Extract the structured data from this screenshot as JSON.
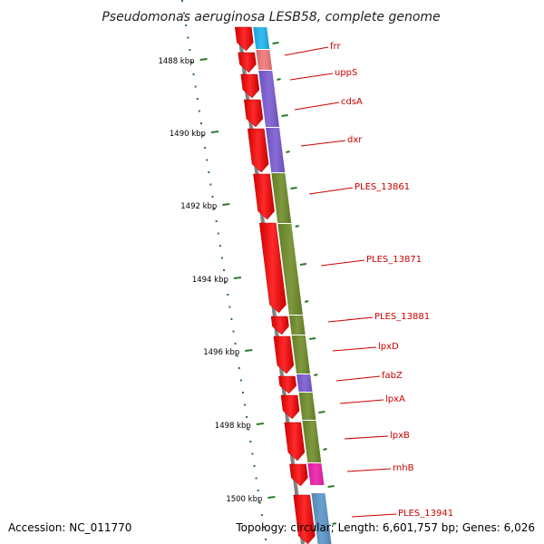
{
  "title": "Pseudomonas aeruginosa LESB58, complete genome",
  "footer": {
    "accession": "Accession: NC_011770",
    "stats": "Topology: circular; Length: 6,601,757 bp; Genes: 6,026"
  },
  "kbp_labels": [
    "1488 kbp",
    "1490 kbp",
    "1492 kbp",
    "1494 kbp",
    "1496 kbp",
    "1498 kbp",
    "1500 kbp"
  ],
  "genes": [
    {
      "name": "frr",
      "color": "#1eb4f0"
    },
    {
      "name": "uppS",
      "color": "#f07878"
    },
    {
      "name": "cdsA",
      "color": "#7a5ad2"
    },
    {
      "name": "dxr",
      "color": "#7a5ad2"
    },
    {
      "name": "PLES_13861",
      "color": "#6e8c28"
    },
    {
      "name": "PLES_13871",
      "color": "#6e8c28"
    },
    {
      "name": "PLES_13881",
      "color": "#6e8c28"
    },
    {
      "name": "lpxD",
      "color": "#6e8c28"
    },
    {
      "name": "fabZ",
      "color": "#7a5ad2"
    },
    {
      "name": "lpxA",
      "color": "#6e8c28"
    },
    {
      "name": "lpxB",
      "color": "#6e8c28"
    },
    {
      "name": "rnhB",
      "color": "#f01eaa"
    },
    {
      "name": "PLES_13941",
      "color": "#5a96c8"
    }
  ],
  "colors": {
    "cds_strand": "#ff0000",
    "backbone": "#808080",
    "ticks": "#2a7a2a",
    "label_line": "#cc0000"
  }
}
